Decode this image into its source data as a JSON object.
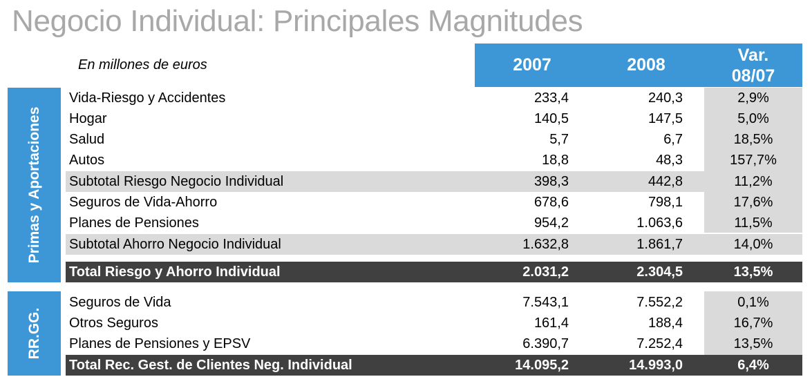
{
  "title": "Negocio Individual: Principales Magnitudes",
  "subtitle": "En millones de euros",
  "header": {
    "col_2007": "2007",
    "col_2008": "2008",
    "col_var_1": "Var.",
    "col_var_2": "08/07"
  },
  "colors": {
    "accent": "#3d97d7",
    "shade": "#dadada",
    "total": "#404040",
    "title": "#a8a8a8"
  },
  "sections": {
    "primas": {
      "label": "Primas y Aportaciones",
      "rows": [
        {
          "label": "Vida-Riesgo y Accidentes",
          "v2007": "233,4",
          "v2008": "240,3",
          "var": "2,9%"
        },
        {
          "label": "Hogar",
          "v2007": "140,5",
          "v2008": "147,5",
          "var": "5,0%"
        },
        {
          "label": "Salud",
          "v2007": "5,7",
          "v2008": "6,7",
          "var": "18,5%"
        },
        {
          "label": "Autos",
          "v2007": "18,8",
          "v2008": "48,3",
          "var": "157,7%"
        },
        {
          "label": "Subtotal Riesgo Negocio Individual",
          "v2007": "398,3",
          "v2008": "442,8",
          "var": "11,2%"
        },
        {
          "label": "Seguros de Vida-Ahorro",
          "v2007": "678,6",
          "v2008": "798,1",
          "var": "17,6%"
        },
        {
          "label": "Planes de Pensiones",
          "v2007": "954,2",
          "v2008": "1.063,6",
          "var": "11,5%"
        },
        {
          "label": "Subtotal Ahorro Negocio Individual",
          "v2007": "1.632,8",
          "v2008": "1.861,7",
          "var": "14,0%"
        }
      ],
      "total": {
        "label": "Total Riesgo y Ahorro Individual",
        "v2007": "2.031,2",
        "v2008": "2.304,5",
        "var": "13,5%"
      }
    },
    "rrgg": {
      "label": "RR.GG.",
      "rows": [
        {
          "label": "Seguros de Vida",
          "v2007": "7.543,1",
          "v2008": "7.552,2",
          "var": "0,1%"
        },
        {
          "label": "Otros Seguros",
          "v2007": "161,4",
          "v2008": "188,4",
          "var": "16,7%"
        },
        {
          "label": "Planes de Pensiones y EPSV",
          "v2007": "6.390,7",
          "v2008": "7.252,4",
          "var": "13,5%"
        }
      ],
      "total": {
        "label": "Total Rec. Gest. de Clientes Neg. Individual",
        "v2007": "14.095,2",
        "v2008": "14.993,0",
        "var": "6,4%"
      }
    }
  }
}
